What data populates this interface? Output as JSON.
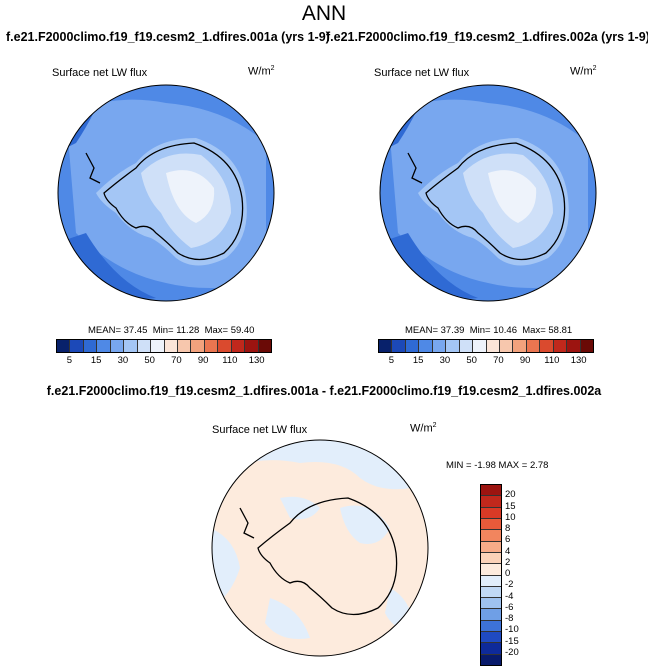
{
  "title": "ANN",
  "panels": [
    {
      "case": "f.e21.F2000climo.f19_f19.cesm2_1.dfires.001a (yrs 1-9)",
      "variable": "Surface net LW flux",
      "units": "W/m",
      "units_exp": "2",
      "mean": "MEAN=  37.45",
      "min": "Min=  11.28",
      "max": "Max=  59.40"
    },
    {
      "case": "f.e21.F2000climo.f19_f19.cesm2_1.dfires.002a (yrs 1-9)",
      "variable": "Surface net LW flux",
      "units": "W/m",
      "units_exp": "2",
      "mean": "MEAN=  37.39",
      "min": "Min=  10.46",
      "max": "Max=  58.81"
    }
  ],
  "colorbar_top": {
    "labels": [
      "5",
      "15",
      "30",
      "50",
      "70",
      "90",
      "110",
      "130"
    ],
    "colors": [
      "#08216b",
      "#1c49b8",
      "#2f6ad4",
      "#4f89e6",
      "#78a7ef",
      "#a4c6f5",
      "#cfe0f8",
      "#eef3fb",
      "#fbe5d8",
      "#f7c7ad",
      "#f2a27d",
      "#ea7550",
      "#da4a2e",
      "#c0281c",
      "#9c1410",
      "#6a0a06"
    ]
  },
  "difference": {
    "title": "f.e21.F2000climo.f19_f19.cesm2_1.dfires.001a - f.e21.F2000climo.f19_f19.cesm2_1.dfires.002a",
    "variable": "Surface net LW flux",
    "units": "W/m",
    "units_exp": "2",
    "minmax": "MIN = -1.98  MAX =  2.78",
    "labels": [
      "20",
      "15",
      "10",
      "8",
      "6",
      "4",
      "2",
      "0",
      "-2",
      "-4",
      "-6",
      "-8",
      "-10",
      "-15",
      "-20"
    ],
    "colors": [
      "#9c1410",
      "#c0281c",
      "#d83a26",
      "#e85a3a",
      "#f2855e",
      "#f7ab88",
      "#fbd2b8",
      "#fdebdd",
      "#e2eefb",
      "#c1d9f5",
      "#9fc2ef",
      "#6f9fe6",
      "#3d72d8",
      "#1f4ac2",
      "#0e2a9a",
      "#081a6b"
    ]
  },
  "map_colors": {
    "ocean_dark": "#4f89e6",
    "ocean_mid": "#78a7ef",
    "land_light": "#cfe0f8",
    "land_lightest": "#eef3fb",
    "diff_pos": "#fdebdd",
    "diff_neg": "#e2eefb"
  }
}
